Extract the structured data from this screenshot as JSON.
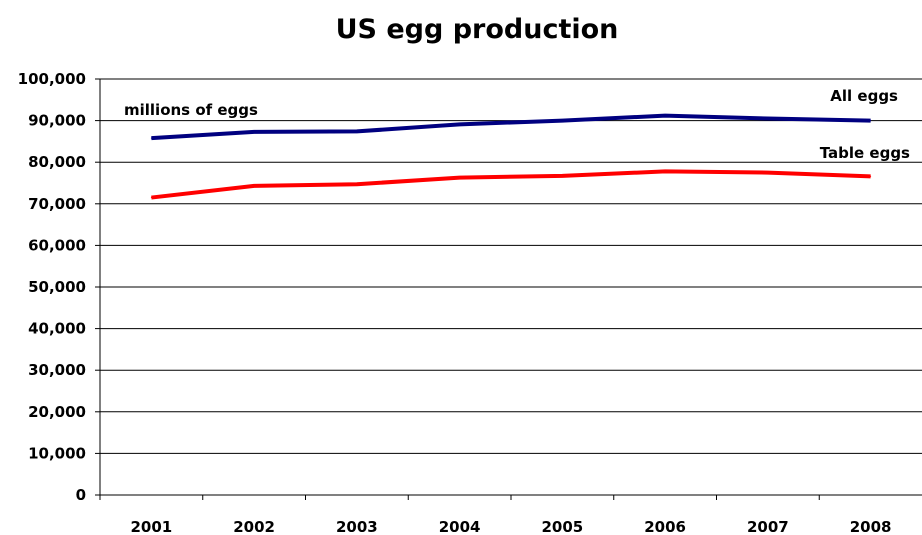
{
  "chart_data": {
    "type": "line",
    "title": "US egg production",
    "unit_note": "millions of eggs",
    "categories": [
      "2001",
      "2002",
      "2003",
      "2004",
      "2005",
      "2006",
      "2007",
      "2008"
    ],
    "series": [
      {
        "name": "All eggs",
        "color": "#000080",
        "values": [
          85800,
          87300,
          87400,
          89100,
          90000,
          91200,
          90500,
          90000
        ]
      },
      {
        "name": "Table eggs",
        "color": "#ff0000",
        "values": [
          71500,
          74300,
          74700,
          76300,
          76700,
          77800,
          77500,
          76600
        ]
      }
    ],
    "ylim": [
      0,
      100000
    ],
    "yticks": [
      "0",
      "10,000",
      "20,000",
      "30,000",
      "40,000",
      "50,000",
      "60,000",
      "70,000",
      "80,000",
      "90,000",
      "100,000"
    ],
    "grid": true,
    "legend": "inline labels at line ends"
  }
}
